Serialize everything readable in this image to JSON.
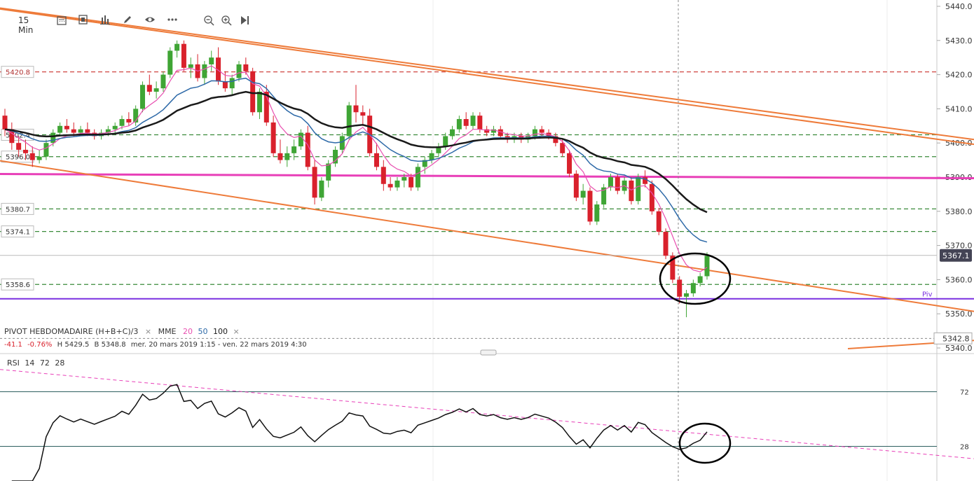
{
  "toolbar": {
    "timeframe": "15 Min",
    "icons": [
      "calendar-icon",
      "template-icon",
      "bar-chart-icon",
      "pencil-icon",
      "eye-icon",
      "more-icon",
      "zoom-out-icon",
      "zoom-in-icon",
      "play-icon"
    ]
  },
  "indicators": {
    "pivot": "PIVOT HEBDOMADAIRE (H+B+C)/3",
    "pivot_close": "×",
    "mme_label": "MME",
    "mme_20": "20",
    "mme_50": "50",
    "mme_100": "100",
    "mme_close": "×"
  },
  "ohlc": {
    "change": "-41.1",
    "change_pct": "-0.76%",
    "high": "H 5429.5",
    "low": "B 5348.8",
    "range": "mer. 20 mars 2019 1:15 - ven. 22 mars 2019 4:30"
  },
  "rsi": {
    "label": "RSI",
    "p1": "14",
    "p2": "72",
    "p3": "28"
  },
  "colors": {
    "up": "#3fa535",
    "down": "#d9212c",
    "ema20": "#e84fb0",
    "ema50": "#2e6aa8",
    "ema100": "#1a1a1a",
    "trendline": "#ee7b3a",
    "pink_line": "#e83fb8",
    "pivot_line": "#7a2fe0",
    "green_dash": "#3a8a3a",
    "red_dash": "#c9302c",
    "annotation": "#000000"
  },
  "chart_data": {
    "type": "candlestick",
    "instrument_timeframe": "15 Min",
    "y_axis": {
      "ticks": [
        "5440.0",
        "5430.0",
        "5420.0",
        "5410.0",
        "5400.0",
        "5390.0",
        "5380.0",
        "5370.0",
        "5360.0",
        "5350.0",
        "5340.0"
      ],
      "range": [
        5340,
        5440
      ]
    },
    "current_price": "5367.1",
    "crosshair_price": "5342.8",
    "pivot_label": "Piv",
    "pivot_value": 5354.4,
    "levels": [
      {
        "label": "5420.8",
        "value": 5420.8,
        "style": "red-dashed"
      },
      {
        "label": "5402.4",
        "value": 5402.4,
        "style": "green-dashed"
      },
      {
        "label": "5396.0",
        "value": 5396.0,
        "style": "green-dashed"
      },
      {
        "label": "5380.7",
        "value": 5380.7,
        "style": "green-dashed"
      },
      {
        "label": "5374.1",
        "value": 5374.1,
        "style": "green-dashed"
      },
      {
        "label": "5358.6",
        "value": 5358.6,
        "style": "green-dashed"
      }
    ],
    "horizontal_pink": 5390.3,
    "trendlines": [
      {
        "from": [
          0,
          5439.5
        ],
        "to": [
          1390,
          5401.0
        ],
        "color": "trendline"
      },
      {
        "from": [
          0,
          5439.2
        ],
        "to": [
          1390,
          5399.6
        ],
        "color": "trendline"
      },
      {
        "from": [
          0,
          5394.8
        ],
        "to": [
          1390,
          5350.7
        ],
        "color": "trendline"
      },
      {
        "from": [
          1210,
          5339.8
        ],
        "to": [
          1390,
          5342.2
        ],
        "color": "trendline"
      }
    ],
    "candles": [
      [
        5408,
        5410,
        5402,
        5404
      ],
      [
        5404,
        5406,
        5398,
        5400
      ],
      [
        5400,
        5402,
        5396,
        5398
      ],
      [
        5398,
        5401,
        5395,
        5397
      ],
      [
        5397,
        5399,
        5393,
        5395
      ],
      [
        5395,
        5398,
        5394,
        5396
      ],
      [
        5396,
        5401,
        5395,
        5400
      ],
      [
        5400,
        5404,
        5399,
        5403
      ],
      [
        5403,
        5406,
        5402,
        5405
      ],
      [
        5405,
        5407,
        5403,
        5404
      ],
      [
        5404,
        5406,
        5402,
        5403
      ],
      [
        5403,
        5405,
        5402,
        5404
      ],
      [
        5404,
        5406,
        5402,
        5403
      ],
      [
        5403,
        5404,
        5401,
        5402
      ],
      [
        5402,
        5404,
        5401,
        5403
      ],
      [
        5403,
        5405,
        5402,
        5404
      ],
      [
        5404,
        5406,
        5403,
        5405
      ],
      [
        5405,
        5408,
        5404,
        5407
      ],
      [
        5407,
        5409,
        5405,
        5406
      ],
      [
        5406,
        5411,
        5405,
        5410
      ],
      [
        5410,
        5418,
        5409,
        5417
      ],
      [
        5417,
        5420,
        5414,
        5415
      ],
      [
        5415,
        5418,
        5413,
        5416
      ],
      [
        5416,
        5421,
        5415,
        5420
      ],
      [
        5420,
        5428,
        5419,
        5427
      ],
      [
        5427,
        5430,
        5425,
        5429
      ],
      [
        5429,
        5430,
        5421,
        5422
      ],
      [
        5422,
        5425,
        5419,
        5423
      ],
      [
        5423,
        5426,
        5418,
        5419
      ],
      [
        5419,
        5424,
        5417,
        5423
      ],
      [
        5423,
        5427,
        5421,
        5425
      ],
      [
        5425,
        5428,
        5417,
        5418
      ],
      [
        5418,
        5421,
        5415,
        5416
      ],
      [
        5416,
        5420,
        5414,
        5419
      ],
      [
        5419,
        5424,
        5418,
        5423
      ],
      [
        5423,
        5425,
        5420,
        5421
      ],
      [
        5421,
        5422,
        5408,
        5409
      ],
      [
        5409,
        5416,
        5407,
        5415
      ],
      [
        5415,
        5417,
        5405,
        5406
      ],
      [
        5406,
        5408,
        5396,
        5397
      ],
      [
        5397,
        5401,
        5394,
        5395
      ],
      [
        5395,
        5399,
        5393,
        5397
      ],
      [
        5397,
        5401,
        5395,
        5399
      ],
      [
        5399,
        5404,
        5398,
        5403
      ],
      [
        5403,
        5405,
        5392,
        5393
      ],
      [
        5393,
        5395,
        5382,
        5384
      ],
      [
        5384,
        5390,
        5383,
        5389
      ],
      [
        5389,
        5395,
        5387,
        5394
      ],
      [
        5394,
        5399,
        5393,
        5398
      ],
      [
        5398,
        5403,
        5397,
        5402
      ],
      [
        5402,
        5412,
        5401,
        5411
      ],
      [
        5411,
        5417,
        5406,
        5409
      ],
      [
        5409,
        5411,
        5405,
        5408
      ],
      [
        5408,
        5410,
        5396,
        5397
      ],
      [
        5397,
        5400,
        5392,
        5393
      ],
      [
        5393,
        5395,
        5386,
        5388
      ],
      [
        5388,
        5390,
        5386,
        5387
      ],
      [
        5387,
        5390,
        5386,
        5389
      ],
      [
        5389,
        5391,
        5387,
        5390
      ],
      [
        5390,
        5391,
        5386,
        5387
      ],
      [
        5387,
        5394,
        5386,
        5393
      ],
      [
        5393,
        5396,
        5391,
        5395
      ],
      [
        5395,
        5398,
        5394,
        5397
      ],
      [
        5397,
        5400,
        5396,
        5399
      ],
      [
        5399,
        5403,
        5398,
        5402
      ],
      [
        5402,
        5405,
        5401,
        5404
      ],
      [
        5404,
        5408,
        5403,
        5407
      ],
      [
        5407,
        5409,
        5404,
        5405
      ],
      [
        5405,
        5409,
        5404,
        5408
      ],
      [
        5408,
        5409,
        5403,
        5404
      ],
      [
        5404,
        5405,
        5402,
        5403
      ],
      [
        5403,
        5405,
        5402,
        5404
      ],
      [
        5404,
        5405,
        5401,
        5402
      ],
      [
        5402,
        5403,
        5400,
        5401
      ],
      [
        5401,
        5403,
        5400,
        5402
      ],
      [
        5402,
        5403,
        5400,
        5401
      ],
      [
        5401,
        5403,
        5400,
        5402
      ],
      [
        5402,
        5405,
        5401,
        5404
      ],
      [
        5404,
        5405,
        5402,
        5403
      ],
      [
        5403,
        5404,
        5401,
        5402
      ],
      [
        5402,
        5403,
        5399,
        5400
      ],
      [
        5400,
        5401,
        5396,
        5397
      ],
      [
        5397,
        5398,
        5390,
        5391
      ],
      [
        5391,
        5392,
        5383,
        5384
      ],
      [
        5384,
        5388,
        5382,
        5386
      ],
      [
        5386,
        5387,
        5376,
        5377
      ],
      [
        5377,
        5383,
        5376,
        5382
      ],
      [
        5382,
        5388,
        5381,
        5387
      ],
      [
        5387,
        5391,
        5386,
        5390
      ],
      [
        5390,
        5391,
        5385,
        5386
      ],
      [
        5386,
        5390,
        5385,
        5389
      ],
      [
        5389,
        5390,
        5382,
        5383
      ],
      [
        5383,
        5391,
        5382,
        5390
      ],
      [
        5390,
        5392,
        5387,
        5388
      ],
      [
        5388,
        5389,
        5379,
        5380
      ],
      [
        5380,
        5381,
        5373,
        5374
      ],
      [
        5374,
        5375,
        5366,
        5367
      ],
      [
        5367,
        5368,
        5359,
        5360
      ],
      [
        5360,
        5361,
        5353,
        5355
      ],
      [
        5355,
        5357,
        5349,
        5356
      ],
      [
        5356,
        5360,
        5355,
        5359
      ],
      [
        5359,
        5362,
        5358,
        5361
      ],
      [
        5361,
        5368,
        5360,
        5367
      ]
    ],
    "rsi_levels": [
      72,
      28
    ],
    "rsi_dashed_line": {
      "from": [
        0,
        90
      ],
      "to": [
        1390,
        18
      ],
      "color": "pink_line"
    }
  }
}
